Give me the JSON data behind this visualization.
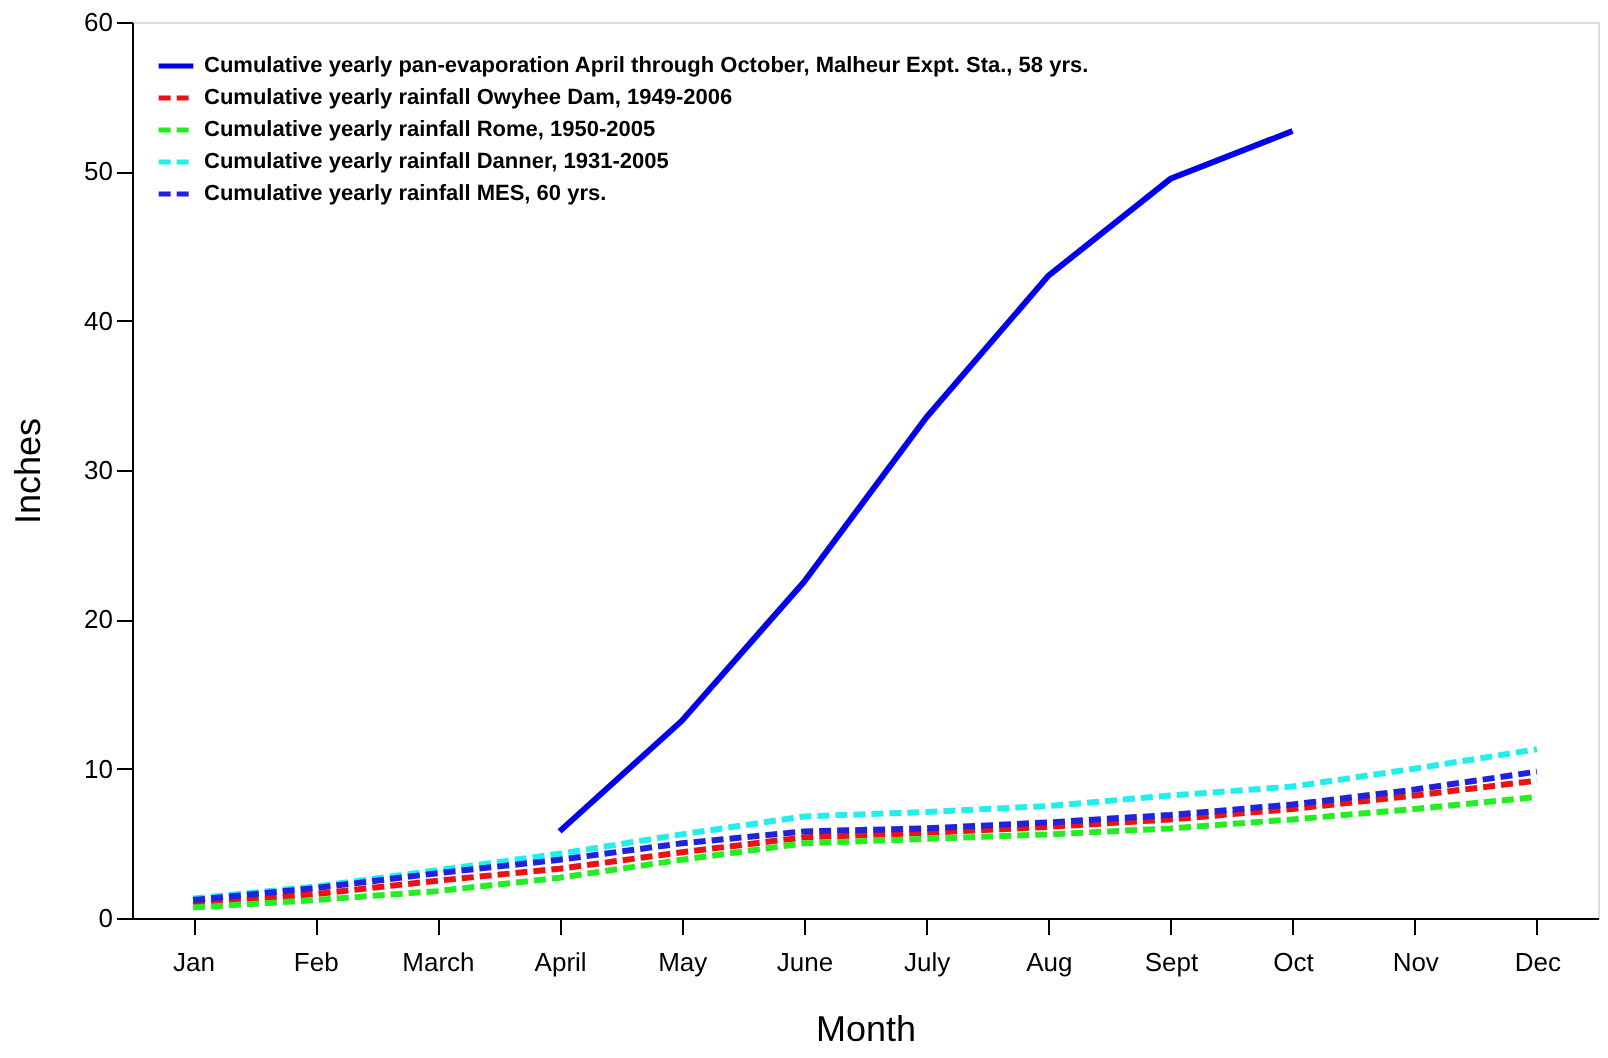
{
  "chart_data": {
    "type": "line",
    "xlabel": "Month",
    "ylabel": "Inches",
    "categories": [
      "Jan",
      "Feb",
      "March",
      "April",
      "May",
      "June",
      "July",
      "Aug",
      "Sept",
      "Oct",
      "Nov",
      "Dec"
    ],
    "ylim": [
      0,
      60
    ],
    "yticks": [
      0,
      10,
      20,
      30,
      40,
      50,
      60
    ],
    "grid": false,
    "legend": "top left",
    "marker": "none",
    "series": [
      {
        "name": "Cumulative yearly pan-evaporation April through October, Malheur Expt. Sta., 58 yrs.",
        "color": "#0000ee",
        "line_style": "solid",
        "values": [
          null,
          null,
          null,
          5.8,
          13.2,
          22.5,
          33.5,
          43.0,
          49.5,
          52.7,
          null,
          null
        ]
      },
      {
        "name": "Cumulative yearly rainfall Owyhee Dam, 1949-2006",
        "color": "#ee1111",
        "line_style": "dashed",
        "values": [
          0.9,
          1.6,
          2.5,
          3.3,
          4.4,
          5.4,
          5.7,
          6.1,
          6.6,
          7.3,
          8.2,
          9.2
        ]
      },
      {
        "name": "Cumulative yearly rainfall Rome, 1950-2005",
        "color": "#22ee22",
        "line_style": "dashed",
        "values": [
          0.7,
          1.2,
          1.8,
          2.7,
          3.9,
          5.0,
          5.3,
          5.6,
          6.0,
          6.6,
          7.3,
          8.1
        ]
      },
      {
        "name": "Cumulative yearly rainfall Danner, 1931-2005",
        "color": "#22eeee",
        "line_style": "dashed",
        "values": [
          1.3,
          2.1,
          3.2,
          4.3,
          5.6,
          6.8,
          7.1,
          7.5,
          8.2,
          8.8,
          10.0,
          11.3
        ]
      },
      {
        "name": "Cumulative yearly rainfall MES, 60 yrs.",
        "color": "#2222dd",
        "line_style": "dashed",
        "values": [
          1.2,
          2.0,
          3.0,
          3.9,
          5.0,
          5.8,
          6.0,
          6.4,
          6.9,
          7.6,
          8.6,
          9.8
        ]
      }
    ]
  }
}
